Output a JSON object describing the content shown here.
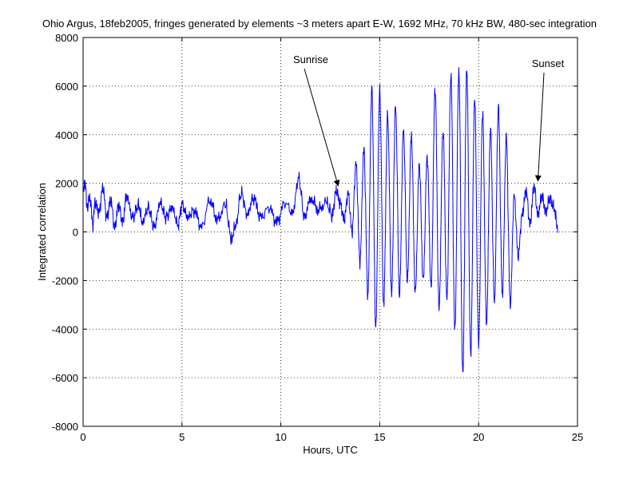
{
  "chart_data": {
    "type": "line",
    "title": "Ohio Argus, 18feb2005, fringes generated by elements ~3 meters apart E-W, 1692 MHz, 70 kHz BW, 480-sec integration",
    "xlabel": "Hours, UTC",
    "ylabel": "Integrated correlation",
    "xlim": [
      0,
      25
    ],
    "ylim": [
      -8000,
      8000
    ],
    "xticks": [
      0,
      5,
      10,
      15,
      20,
      25
    ],
    "yticks": [
      -8000,
      -6000,
      -4000,
      -2000,
      0,
      2000,
      4000,
      6000,
      8000
    ],
    "grid": true,
    "line_color": "#0000ff",
    "series": [
      {
        "x": [
          0,
          0.1,
          0.2,
          0.35,
          0.5,
          0.6,
          0.8,
          1.0,
          1.2,
          1.4,
          1.6,
          1.8,
          2.0,
          2.2,
          2.5,
          2.8,
          3.0,
          3.3,
          3.6,
          3.9,
          4.2,
          4.5,
          4.8,
          5.0,
          5.3,
          5.6,
          6.0,
          6.4,
          6.8,
          7.2,
          7.5,
          7.7,
          8.0,
          8.3,
          8.6,
          9.0,
          9.4,
          9.8,
          10.2,
          10.6,
          10.9,
          11.2,
          11.5,
          11.9,
          12.3,
          12.6,
          12.8,
          13.0,
          13.2,
          13.4,
          13.6,
          13.8,
          14.0,
          14.2,
          14.4,
          14.6,
          14.8,
          15.0,
          15.2,
          15.4,
          15.6,
          15.8,
          16.0,
          16.2,
          16.4,
          16.6,
          16.8,
          17.0,
          17.2,
          17.4,
          17.6,
          17.8,
          18.0,
          18.2,
          18.4,
          18.6,
          18.8,
          19.0,
          19.2,
          19.4,
          19.6,
          19.8,
          20.0,
          20.2,
          20.4,
          20.6,
          20.8,
          21.0,
          21.2,
          21.4,
          21.6,
          21.8,
          22.0,
          22.2,
          22.4,
          22.6,
          22.8,
          23.0,
          23.2,
          23.4,
          23.6,
          23.8,
          24.0
        ],
        "y": [
          1600,
          2100,
          1000,
          1400,
          300,
          1200,
          800,
          1800,
          600,
          1300,
          200,
          1100,
          400,
          1500,
          600,
          1100,
          400,
          1000,
          200,
          1200,
          600,
          1000,
          300,
          1100,
          600,
          900,
          200,
          1300,
          500,
          1100,
          -300,
          200,
          1600,
          700,
          1400,
          600,
          1000,
          400,
          1200,
          800,
          2200,
          600,
          1400,
          900,
          1200,
          700,
          1700,
          1200,
          500,
          1600,
          0,
          2800,
          -1200,
          3400,
          -2600,
          5900,
          -3900,
          5800,
          -3000,
          4800,
          -2500,
          5200,
          -2600,
          4200,
          -2000,
          4000,
          -2500,
          2800,
          -2000,
          3100,
          -2300,
          5900,
          -3200,
          4200,
          -2800,
          6500,
          -4100,
          6600,
          -5900,
          6700,
          -5100,
          5500,
          -4600,
          4900,
          -3800,
          4200,
          -2900,
          5100,
          -2600,
          3900,
          -3000,
          1500,
          -1000,
          700,
          1700,
          300,
          1900,
          700,
          1500,
          800,
          1400,
          1000,
          200
        ]
      }
    ],
    "annotations": [
      {
        "text": "Sunrise",
        "x": 12.9,
        "y": 1700
      },
      {
        "text": "Sunset",
        "x": 23.0,
        "y": 1900
      }
    ]
  }
}
